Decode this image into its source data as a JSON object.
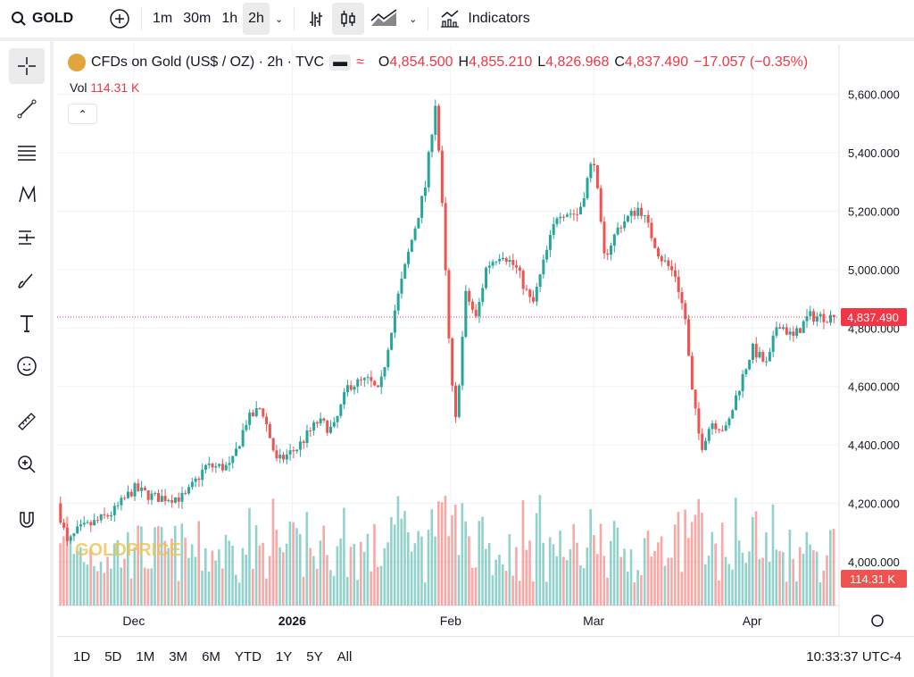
{
  "toolbar": {
    "symbol": "GOLD",
    "intervals": [
      "1m",
      "30m",
      "1h",
      "2h"
    ],
    "selected_interval": "2h",
    "indicators_label": "Indicators"
  },
  "left_tools": [
    "crosshair-icon",
    "trend-line-icon",
    "fib-lines-icon",
    "pattern-icon",
    "long-position-icon",
    "brush-icon",
    "text-icon",
    "emoji-icon",
    "ruler-icon",
    "zoom-in-icon",
    "magnet-icon"
  ],
  "legend": {
    "title": "CFDs on Gold (US$ / OZ) · 2h · TVC",
    "open_label": "O",
    "open": "4,854.500",
    "high_label": "H",
    "high": "4,855.210",
    "low_label": "L",
    "low": "4,826.968",
    "close_label": "C",
    "close": "4,837.490",
    "change": "−17.057 (−0.35%)",
    "vol_label": "Vol",
    "vol": "114.31 K"
  },
  "price_badge": "4,837.490",
  "vol_badge": "114.31 K",
  "ranges": [
    "1D",
    "5D",
    "1M",
    "3M",
    "6M",
    "YTD",
    "1Y",
    "5Y",
    "All"
  ],
  "clock": "10:33:37 UTC-4",
  "colors": {
    "up": "#26a69a",
    "down": "#ef5350",
    "price_line": "#f23645"
  },
  "watermark": "GOLDPRICE",
  "chart_data": {
    "type": "candlestick",
    "y_ticks": [
      "5,600.000",
      "5,400.000",
      "5,200.000",
      "5,000.000",
      "4,800.000",
      "4,600.000",
      "4,400.000",
      "4,200.000",
      "4,000.000"
    ],
    "ylim": [
      3850,
      5770
    ],
    "x_ticks": [
      {
        "label": "Dec",
        "date": "2025-12-01"
      },
      {
        "label": "2026",
        "date": "2026-01-01"
      },
      {
        "label": "Feb",
        "date": "2026-02-01"
      },
      {
        "label": "Mar",
        "date": "2026-03-01"
      },
      {
        "label": "Apr",
        "date": "2026-04-01"
      }
    ],
    "xlim": [
      "2025-11-16",
      "2026-04-18"
    ],
    "close_path": [
      [
        "2025-11-16",
        4200
      ],
      [
        "2025-11-18",
        4060
      ],
      [
        "2025-11-20",
        4105
      ],
      [
        "2025-11-24",
        4140
      ],
      [
        "2025-11-27",
        4170
      ],
      [
        "2025-12-01",
        4250
      ],
      [
        "2025-12-05",
        4220
      ],
      [
        "2025-12-11",
        4220
      ],
      [
        "2025-12-15",
        4325
      ],
      [
        "2025-12-20",
        4325
      ],
      [
        "2025-12-23",
        4480
      ],
      [
        "2025-12-26",
        4530
      ],
      [
        "2025-12-29",
        4340
      ],
      [
        "2026-01-02",
        4390
      ],
      [
        "2026-01-06",
        4480
      ],
      [
        "2026-01-09",
        4450
      ],
      [
        "2026-01-12",
        4605
      ],
      [
        "2026-01-16",
        4620
      ],
      [
        "2026-01-18",
        4575
      ],
      [
        "2026-01-21",
        4855
      ],
      [
        "2026-01-24",
        5075
      ],
      [
        "2026-01-27",
        5280
      ],
      [
        "2026-01-29",
        5575
      ],
      [
        "2026-01-30",
        5330
      ],
      [
        "2026-02-01",
        4640
      ],
      [
        "2026-02-02",
        4480
      ],
      [
        "2026-02-04",
        4920
      ],
      [
        "2026-02-06",
        4830
      ],
      [
        "2026-02-08",
        5010
      ],
      [
        "2026-02-11",
        5060
      ],
      [
        "2026-02-14",
        5000
      ],
      [
        "2026-02-17",
        4875
      ],
      [
        "2026-02-19",
        5010
      ],
      [
        "2026-02-22",
        5200
      ],
      [
        "2026-02-26",
        5190
      ],
      [
        "2026-03-01",
        5390
      ],
      [
        "2026-03-03",
        5040
      ],
      [
        "2026-03-06",
        5150
      ],
      [
        "2026-03-10",
        5215
      ],
      [
        "2026-03-14",
        5045
      ],
      [
        "2026-03-17",
        4980
      ],
      [
        "2026-03-19",
        4825
      ],
      [
        "2026-03-20",
        4605
      ],
      [
        "2026-03-22",
        4390
      ],
      [
        "2026-03-24",
        4480
      ],
      [
        "2026-03-27",
        4450
      ],
      [
        "2026-03-29",
        4575
      ],
      [
        "2026-04-01",
        4730
      ],
      [
        "2026-04-04",
        4670
      ],
      [
        "2026-04-06",
        4825
      ],
      [
        "2026-04-09",
        4765
      ],
      [
        "2026-04-12",
        4840
      ],
      [
        "2026-04-17",
        4837.49
      ]
    ],
    "last_price": 4837.49
  }
}
